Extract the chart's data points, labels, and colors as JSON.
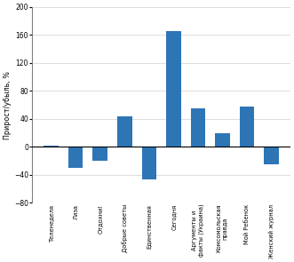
{
  "categories": [
    "Теленеделя",
    "Лиза",
    "Отдохни!",
    "Добрые советы",
    "Единственная",
    "Сегодня",
    "Аргументы и\nфакты (Украина)",
    "Комсомольская\nправда",
    "Мой Ребенок",
    "Женский журнал"
  ],
  "values": [
    2,
    -30,
    -20,
    43,
    -47,
    165,
    55,
    20,
    58,
    -25
  ],
  "bar_color": "#2E75B6",
  "ylabel": "Прирост/убыль, %",
  "ylim": [
    -80,
    200
  ],
  "yticks": [
    -80,
    -40,
    0,
    40,
    80,
    120,
    160,
    200
  ],
  "background_color": "#ffffff"
}
